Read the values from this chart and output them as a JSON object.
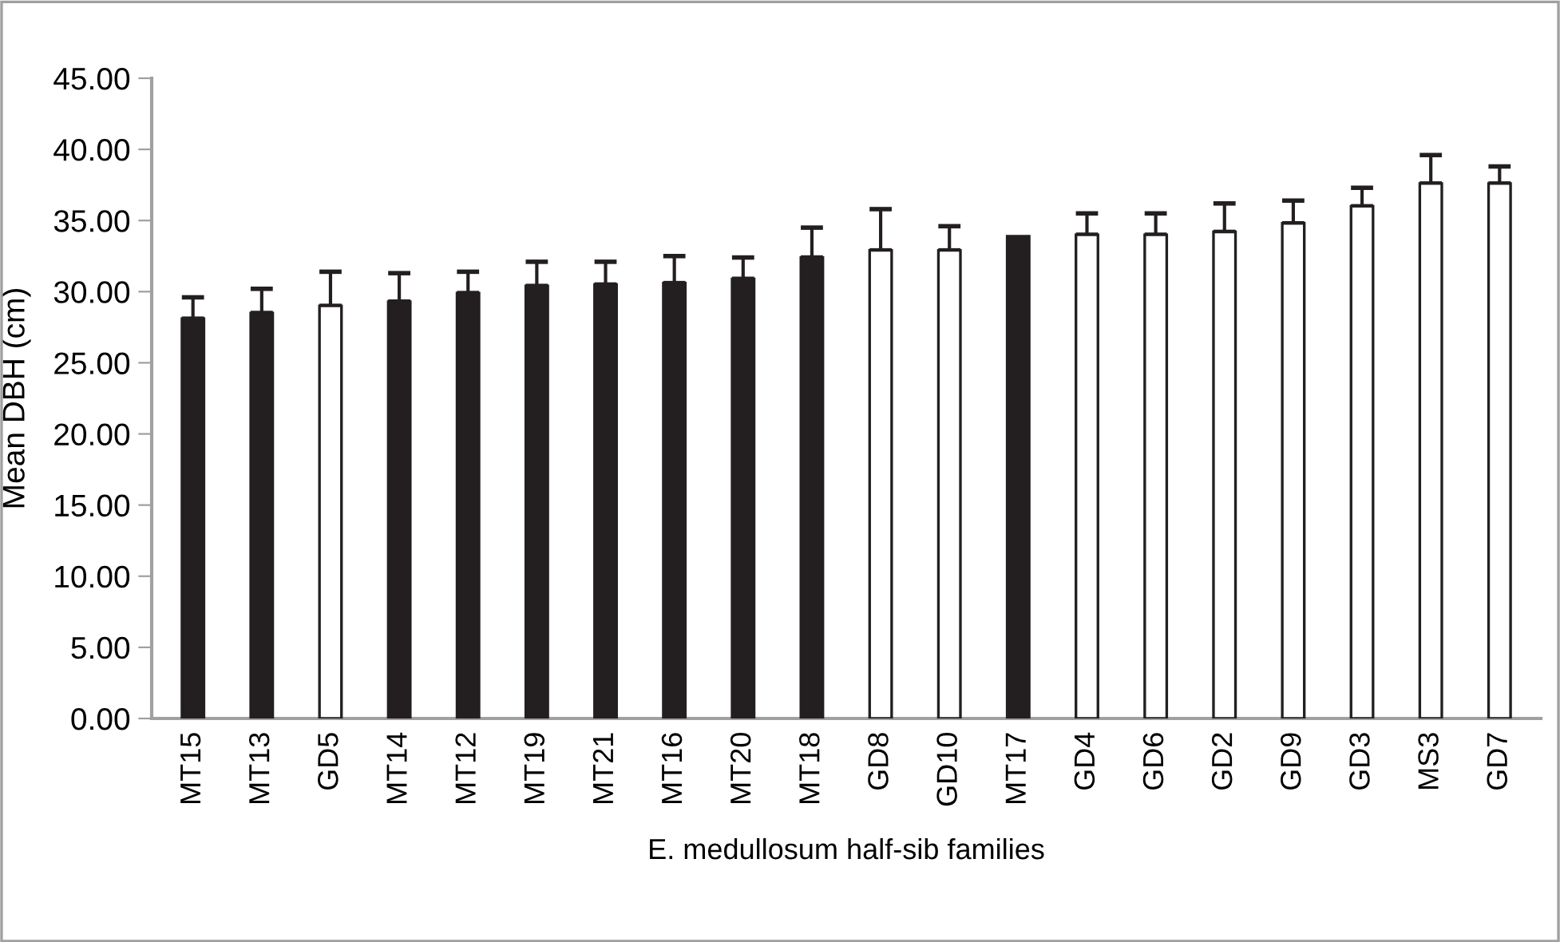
{
  "chart_data": {
    "type": "bar",
    "xlabel": "E. medullosum half-sib families",
    "ylabel": "Mean DBH (cm)",
    "categories": [
      "MT15",
      "MT13",
      "GD5",
      "MT14",
      "MT12",
      "MT19",
      "MT21",
      "MT16",
      "MT20",
      "MT18",
      "GD8",
      "GD10",
      "MT17",
      "GD4",
      "GD6",
      "GD2",
      "GD9",
      "GD3",
      "MS3",
      "GD7"
    ],
    "values": [
      28.1,
      28.5,
      29.0,
      29.3,
      29.9,
      30.4,
      30.5,
      30.6,
      30.9,
      32.4,
      32.9,
      32.9,
      33.9,
      34.0,
      34.0,
      34.2,
      34.8,
      36.0,
      37.6,
      37.6
    ],
    "errors": [
      [
        28.1,
        29.6
      ],
      [
        28.5,
        30.2
      ],
      [
        29.0,
        31.4
      ],
      [
        29.3,
        31.3
      ],
      [
        29.9,
        31.4
      ],
      [
        30.4,
        32.1
      ],
      [
        30.5,
        32.1
      ],
      [
        30.6,
        32.5
      ],
      [
        30.9,
        32.4
      ],
      [
        32.4,
        34.5
      ],
      [
        32.9,
        35.8
      ],
      [
        32.9,
        34.6
      ],
      null,
      [
        34.0,
        35.5
      ],
      [
        34.0,
        35.5
      ],
      [
        34.2,
        36.2
      ],
      [
        34.8,
        36.4
      ],
      [
        36.0,
        37.3
      ],
      [
        37.6,
        39.6
      ],
      [
        37.6,
        38.8
      ]
    ],
    "colors": [
      "#231f20",
      "#231f20",
      "#ffffff",
      "#231f20",
      "#231f20",
      "#231f20",
      "#231f20",
      "#231f20",
      "#231f20",
      "#231f20",
      "#ffffff",
      "#ffffff",
      "#231f20",
      "#ffffff",
      "#ffffff",
      "#ffffff",
      "#ffffff",
      "#ffffff",
      "#ffffff",
      "#ffffff"
    ],
    "ylim": [
      0,
      45
    ],
    "yticks": [
      {
        "value": 0,
        "label": "0.00"
      },
      {
        "value": 5,
        "label": "5.00"
      },
      {
        "value": 10,
        "label": "10.00"
      },
      {
        "value": 15,
        "label": "15.00"
      },
      {
        "value": 20,
        "label": "20.00"
      },
      {
        "value": 25,
        "label": "25.00"
      },
      {
        "value": 30,
        "label": "30.00"
      },
      {
        "value": 35,
        "label": "35.00"
      },
      {
        "value": 40,
        "label": "40.00"
      },
      {
        "value": 45,
        "label": "45.00"
      }
    ],
    "grid": false,
    "legend": false
  }
}
